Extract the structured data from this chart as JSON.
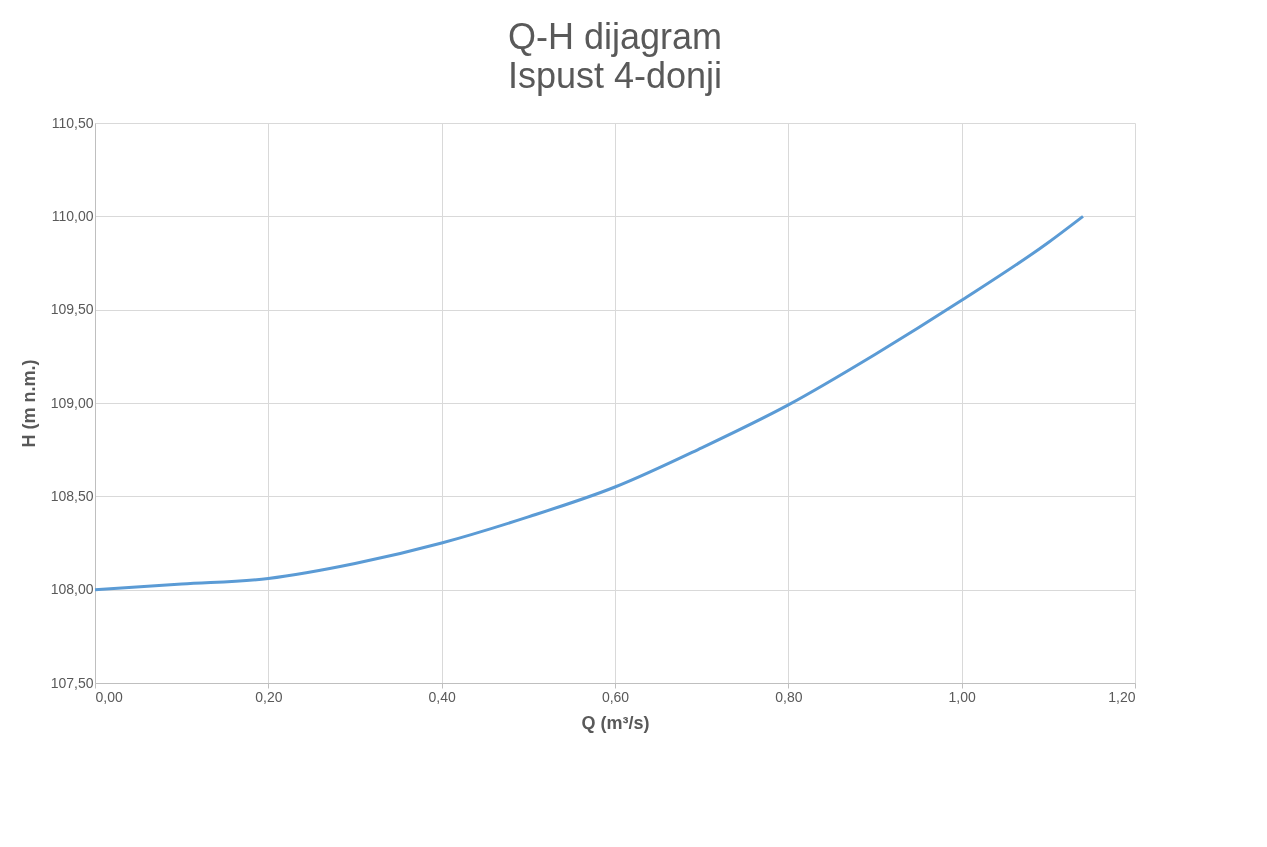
{
  "chart_data": {
    "type": "line",
    "title": "Q-H dijagram",
    "subtitle": "Ispust 4-donji",
    "xlabel": "Q (m³/s)",
    "ylabel": "H (m n.m.)",
    "x": [
      0,
      0.1,
      0.2,
      0.3,
      0.4,
      0.5,
      0.6,
      0.7,
      0.8,
      0.9,
      1.0,
      1.1,
      1.14
    ],
    "series": [
      {
        "color": "#5b9bd5",
        "values": [
          108.0,
          108.03,
          108.06,
          108.14,
          108.25,
          108.39,
          108.55,
          108.76,
          108.99,
          109.26,
          109.55,
          109.86,
          110.0
        ]
      }
    ],
    "xlim": [
      0,
      1.2
    ],
    "ylim": [
      107.5,
      110.5
    ],
    "xticks": [
      {
        "value": 0,
        "label": "0,00"
      },
      {
        "value": 0.2,
        "label": "0,20"
      },
      {
        "value": 0.4,
        "label": "0,40"
      },
      {
        "value": 0.6,
        "label": "0,60"
      },
      {
        "value": 0.8,
        "label": "0,80"
      },
      {
        "value": 1.0,
        "label": "1,00"
      },
      {
        "value": 1.2,
        "label": "1,20"
      }
    ],
    "yticks": [
      {
        "value": 107.5,
        "label": "107,50"
      },
      {
        "value": 108.0,
        "label": "108,00"
      },
      {
        "value": 108.5,
        "label": "108,50"
      },
      {
        "value": 109.0,
        "label": "109,00"
      },
      {
        "value": 109.5,
        "label": "109,50"
      },
      {
        "value": 110.0,
        "label": "110,00"
      },
      {
        "value": 110.5,
        "label": "110,50"
      }
    ],
    "grid": true
  }
}
